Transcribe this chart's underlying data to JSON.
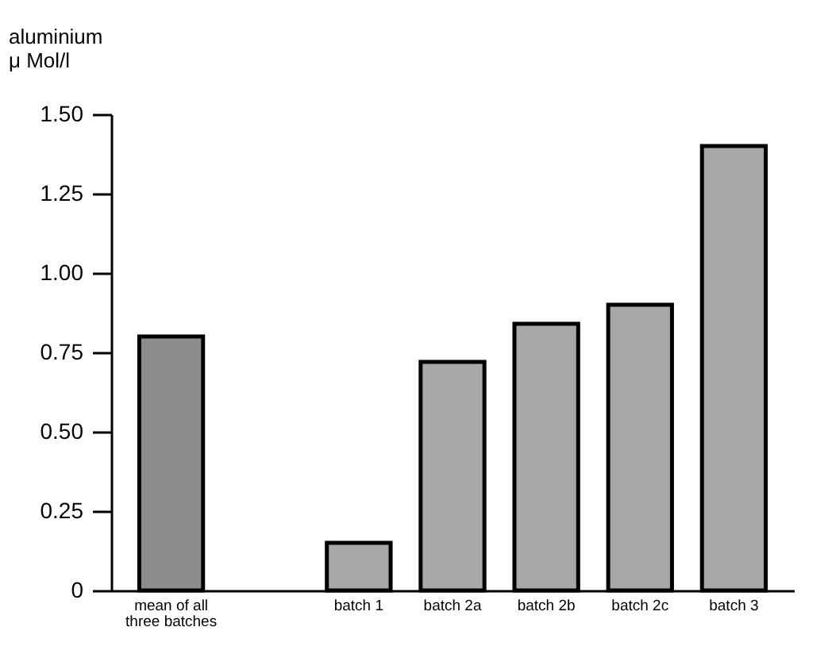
{
  "chart_data": {
    "type": "bar",
    "ylabel": "aluminium\nμ Mol/l",
    "categories": [
      "mean of all three batches",
      null,
      "batch 1",
      "batch 2a",
      "batch 2b",
      "batch 2c",
      "batch 3"
    ],
    "values": [
      0.8,
      null,
      0.15,
      0.72,
      0.84,
      0.9,
      1.4
    ],
    "colors": [
      "#8c8c8c",
      null,
      "#a8a8a8",
      "#a8a8a8",
      "#a8a8a8",
      "#a8a8a8",
      "#a8a8a8"
    ],
    "ylim": [
      0,
      1.5
    ],
    "yticks": [
      {
        "value": 0,
        "label": "0"
      },
      {
        "value": 0.25,
        "label": "0.25"
      },
      {
        "value": 0.5,
        "label": "0.50"
      },
      {
        "value": 0.75,
        "label": "0.75"
      },
      {
        "value": 1,
        "label": "1.00"
      },
      {
        "value": 1.25,
        "label": "1.25"
      },
      {
        "value": 1.5,
        "label": "1.50"
      }
    ],
    "grid": false
  }
}
